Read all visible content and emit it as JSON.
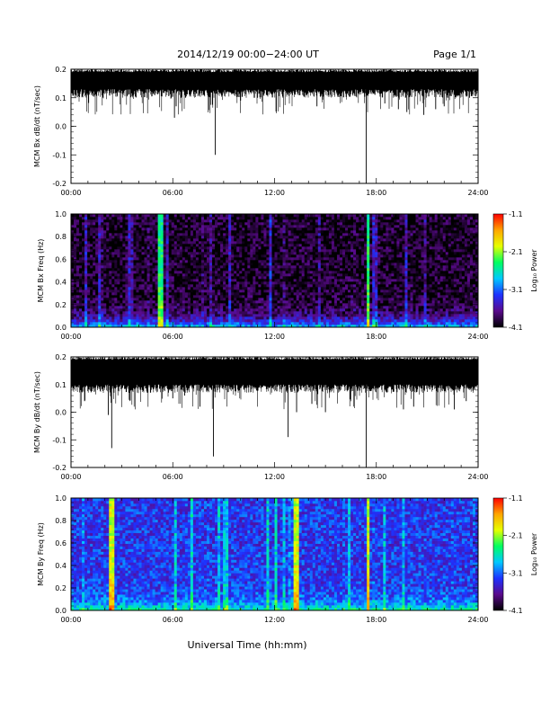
{
  "header": {
    "title": "2014/12/19  00:00−24:00 UT",
    "page": "Page 1/1"
  },
  "footer": {
    "xlabel": "Universal Time (hh:mm)"
  },
  "colorbar": {
    "label": "Log₁₀ Power",
    "ticks": [
      "-1.1",
      "-2.1",
      "-3.1",
      "-4.1"
    ],
    "colormap": [
      "#000000",
      "#5a0a8c",
      "#1e32ff",
      "#00c8ff",
      "#00ff60",
      "#e6ff00",
      "#ffa500",
      "#ff0000"
    ]
  },
  "chart_data": [
    {
      "type": "line",
      "ylabel": "MCM Bx dB/dt (nT/sec)",
      "xlim": [
        0,
        24
      ],
      "ylim": [
        -0.2,
        0.2
      ],
      "x_ticks": [
        "00:00",
        "06:00",
        "12:00",
        "18:00",
        "24:00"
      ],
      "y_ticks": [
        "0.2",
        "0.1",
        "0.0",
        "-0.1",
        "-0.2"
      ],
      "series": [
        {
          "baseline_top": 0.2,
          "baseline_bottom": 0.13,
          "spikes": [
            [
              6.1,
              0.03
            ],
            [
              6.2,
              0.07
            ],
            [
              8.5,
              -0.1
            ],
            [
              10.0,
              0.09
            ],
            [
              11.0,
              0.1
            ],
            [
              12.5,
              0.1
            ],
            [
              14.5,
              0.07
            ],
            [
              17.4,
              -0.2
            ],
            [
              18.5,
              0.08
            ],
            [
              19.3,
              0.06
            ],
            [
              19.8,
              0.05
            ],
            [
              20.8,
              0.04
            ],
            [
              21.5,
              0.06
            ],
            [
              22.0,
              0.07
            ],
            [
              23.5,
              0.1
            ]
          ]
        }
      ]
    },
    {
      "type": "heatmap",
      "ylabel": "MCM Bx Freq (Hz)",
      "xlim": [
        0,
        24
      ],
      "ylim": [
        0.0,
        1.0
      ],
      "x_ticks": [
        "00:00",
        "06:00",
        "12:00",
        "18:00",
        "24:00"
      ],
      "y_ticks": [
        "1.0",
        "0.8",
        "0.6",
        "0.4",
        "0.2",
        "0.0"
      ],
      "zlim": [
        -4.1,
        -1.1
      ],
      "features": {
        "background_log_power": -4.1,
        "low_freq_band_log_power": -3.0,
        "bright_columns_hours": [
          5.1,
          5.3,
          17.4
        ],
        "bright_column_log_power": -2.5
      }
    },
    {
      "type": "line",
      "ylabel": "MCM By dB/dt (nT/sec)",
      "xlim": [
        0,
        24
      ],
      "ylim": [
        -0.2,
        0.2
      ],
      "x_ticks": [
        "00:00",
        "06:00",
        "12:00",
        "18:00",
        "24:00"
      ],
      "y_ticks": [
        "0.2",
        "0.1",
        "0.0",
        "-0.1",
        "-0.2"
      ],
      "series": [
        {
          "baseline_top": 0.2,
          "baseline_bottom": 0.1,
          "spikes": [
            [
              0.8,
              0.04
            ],
            [
              2.2,
              -0.01
            ],
            [
              2.4,
              -0.13
            ],
            [
              4.5,
              0.07
            ],
            [
              6.0,
              0.05
            ],
            [
              6.7,
              0.06
            ],
            [
              7.6,
              0.02
            ],
            [
              8.4,
              -0.16
            ],
            [
              12.8,
              -0.09
            ],
            [
              13.3,
              0.0
            ],
            [
              14.2,
              0.03
            ],
            [
              15.0,
              0.0
            ],
            [
              17.4,
              -0.2
            ],
            [
              19.6,
              0.01
            ],
            [
              20.2,
              0.02
            ],
            [
              22.6,
              0.01
            ],
            [
              23.3,
              0.04
            ]
          ]
        }
      ]
    },
    {
      "type": "heatmap",
      "ylabel": "MCM By Freq (Hz)",
      "xlim": [
        0,
        24
      ],
      "ylim": [
        0.0,
        1.0
      ],
      "x_ticks": [
        "00:00",
        "06:00",
        "12:00",
        "18:00",
        "24:00"
      ],
      "y_ticks": [
        "1.0",
        "0.8",
        "0.6",
        "0.4",
        "0.2",
        "0.0"
      ],
      "zlim": [
        -4.1,
        -1.1
      ],
      "features": {
        "background_log_power": -3.4,
        "low_freq_band_log_power": -2.7,
        "bright_columns_hours": [
          2.2,
          2.4,
          13.1,
          13.3,
          17.4
        ],
        "bright_column_log_power": -2.0
      }
    }
  ]
}
